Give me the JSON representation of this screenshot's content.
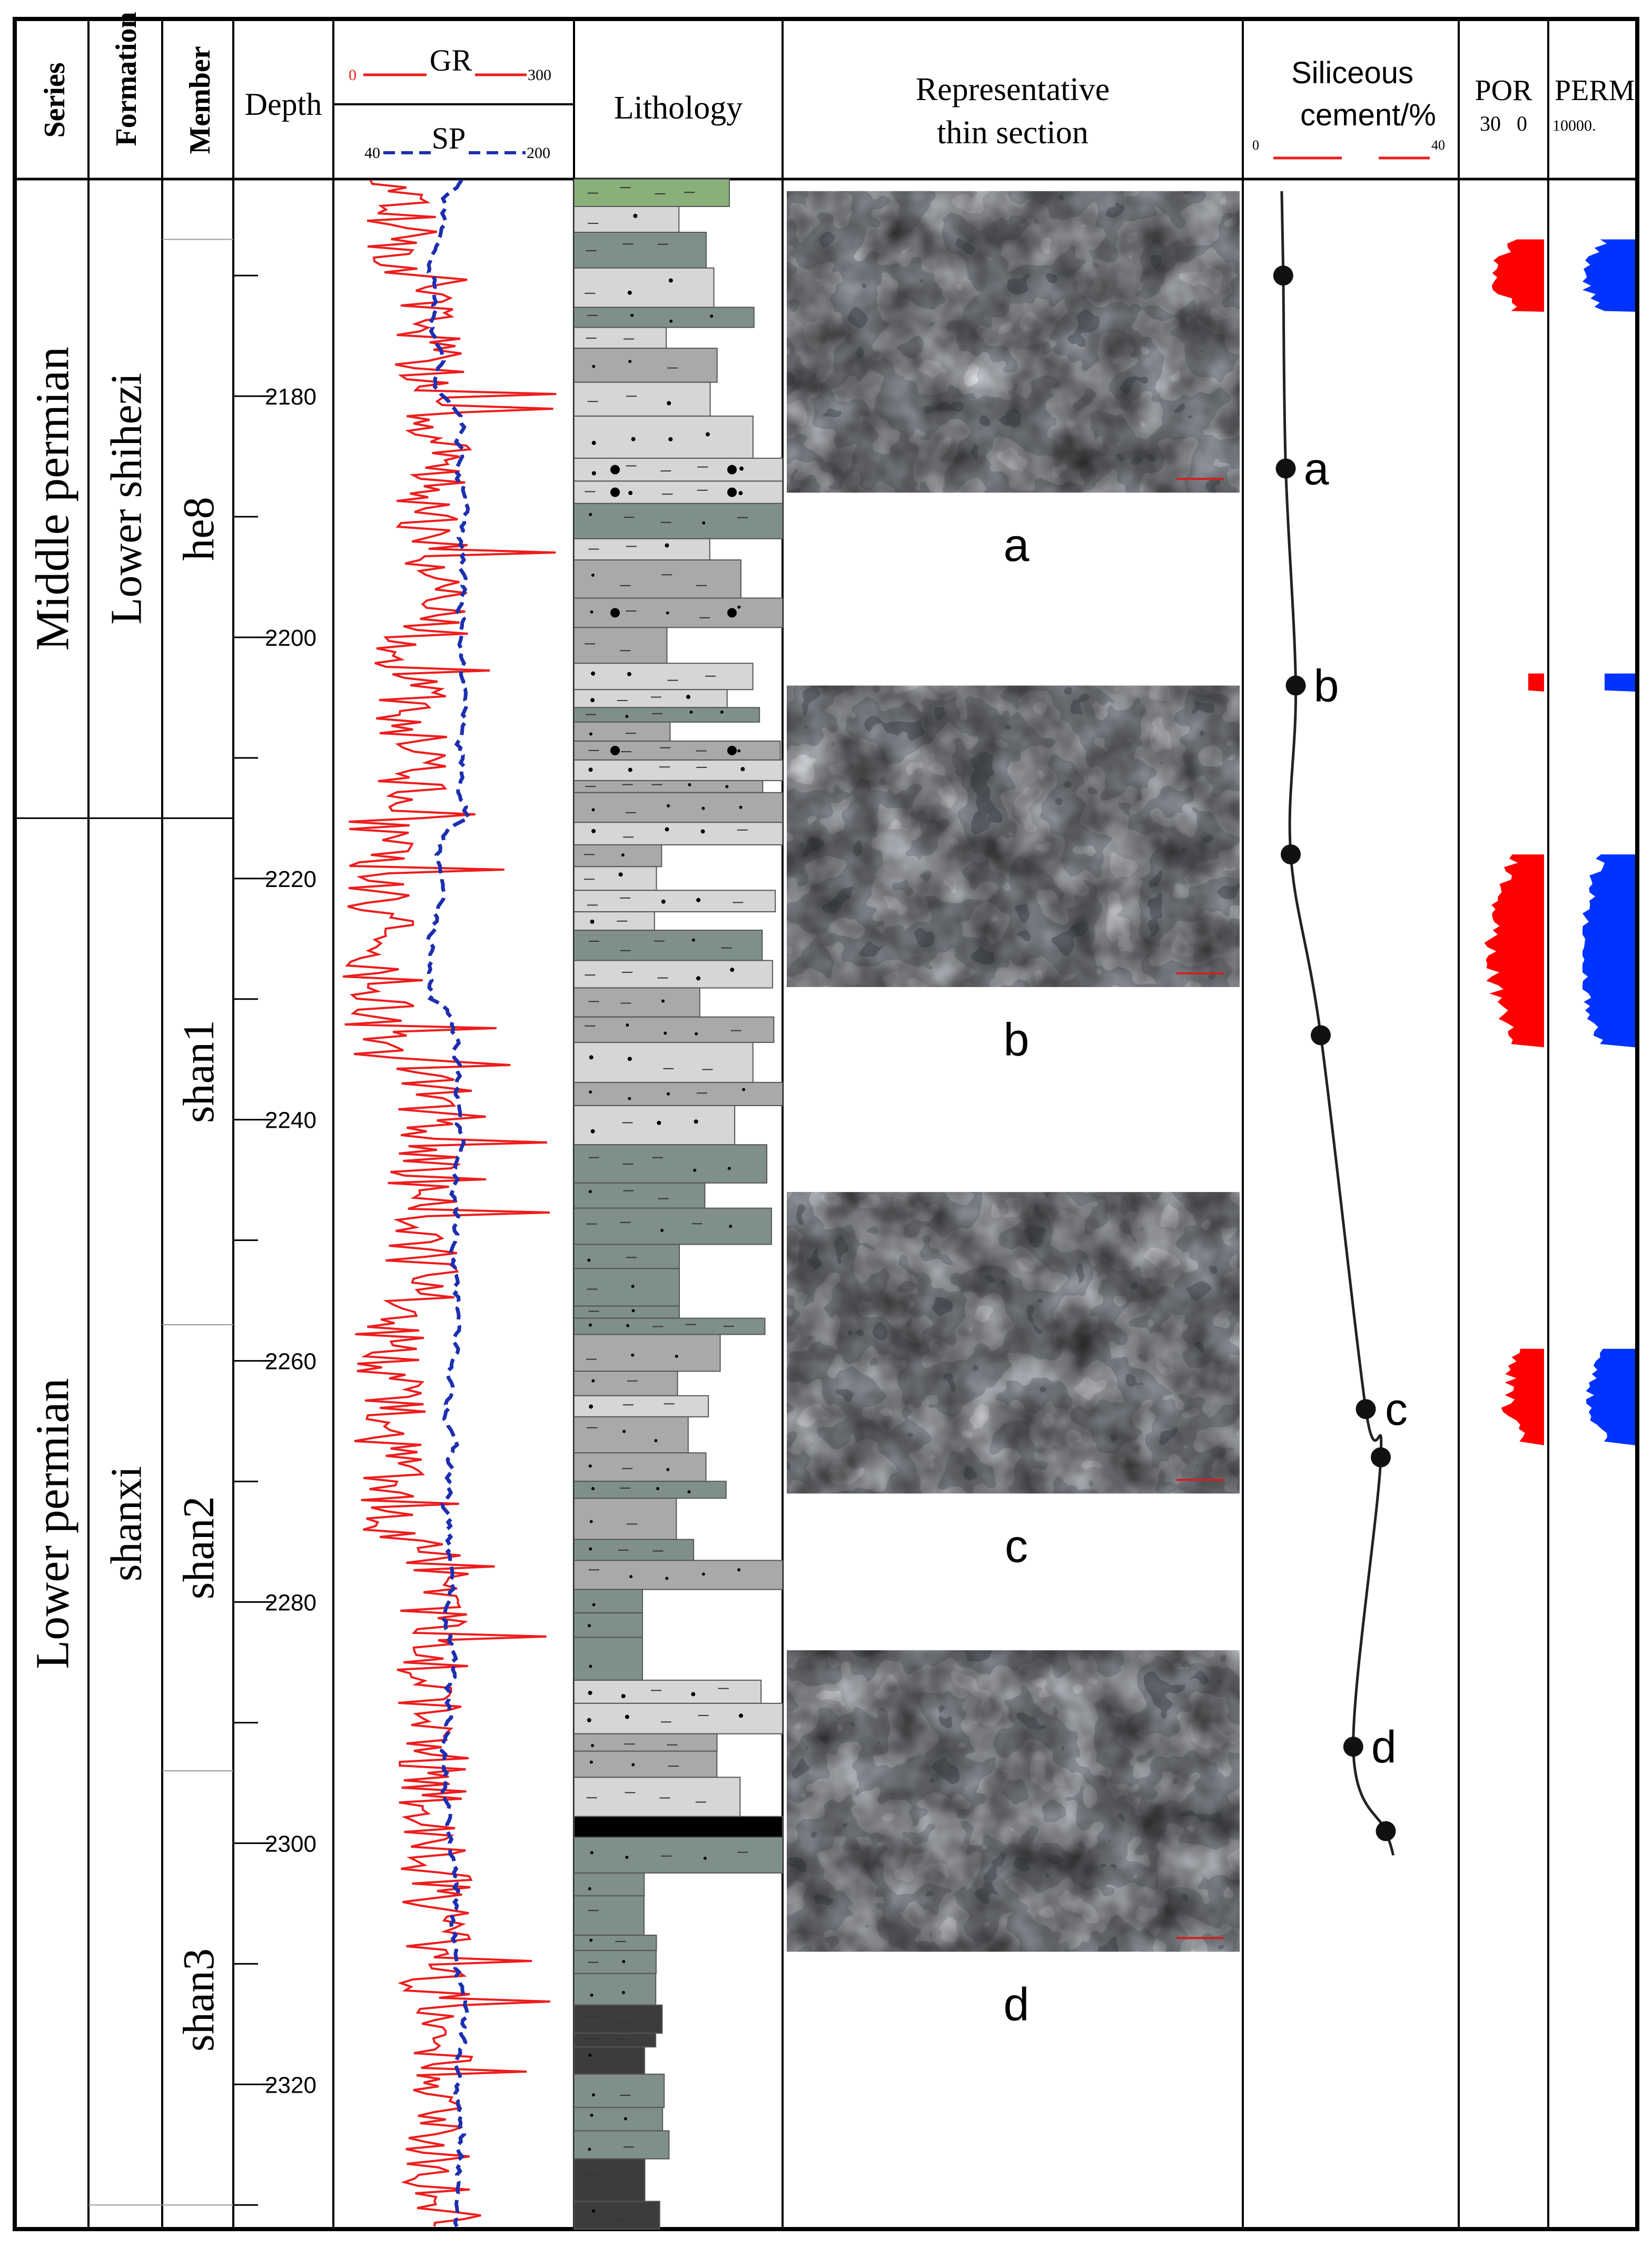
{
  "headers": {
    "series": "Series",
    "formation": "Formation",
    "member": "Member",
    "depth": "Depth",
    "gr": "GR",
    "gr_min": "0",
    "gr_max": "300",
    "sp": "SP",
    "sp_min": "40",
    "sp_max": "200",
    "lithology": "Lithology",
    "thin_section_line1": "Representative",
    "thin_section_line2": "thin section",
    "siliceous_line1": "Siliceous",
    "siliceous_line2": "cement/%",
    "siliceous_min": "0",
    "siliceous_max": "40",
    "por": "POR",
    "por_range": "30   0",
    "perm": "PERM",
    "perm_range": "10000."
  },
  "series_units": [
    {
      "label": "Middle permian",
      "top": 2162,
      "bottom": 2215
    },
    {
      "label": "Lower permian",
      "top": 2215,
      "bottom": 2332
    }
  ],
  "formation_units": [
    {
      "label": "Lower shihezi",
      "top": 2162,
      "bottom": 2215
    },
    {
      "label": "shanxi",
      "top": 2215,
      "bottom": 2332
    }
  ],
  "member_units": [
    {
      "label": "he8",
      "top": 2167,
      "bottom": 2215
    },
    {
      "label": "shan1",
      "top": 2215,
      "bottom": 2257
    },
    {
      "label": "shan2",
      "top": 2257,
      "bottom": 2294
    },
    {
      "label": "shan3",
      "top": 2294,
      "bottom": 2332
    }
  ],
  "depth_axis": {
    "min": 2162,
    "max": 2332,
    "labels": [
      2180,
      2200,
      2220,
      2240,
      2260,
      2280,
      2300,
      2320
    ]
  },
  "thin_sections": [
    {
      "label": "a",
      "top_depth": 2163,
      "bottom_depth": 2188
    },
    {
      "label": "b",
      "top_depth": 2204,
      "bottom_depth": 2229
    },
    {
      "label": "c",
      "top_depth": 2246,
      "bottom_depth": 2271
    },
    {
      "label": "d",
      "top_depth": 2284,
      "bottom_depth": 2309
    }
  ],
  "siliceous_points": [
    {
      "label": "",
      "depth": 2170,
      "value": 6.5
    },
    {
      "label": "a",
      "depth": 2186,
      "value": 7.0
    },
    {
      "label": "b",
      "depth": 2204,
      "value": 9.0
    },
    {
      "label": "",
      "depth": 2218,
      "value": 8.0
    },
    {
      "label": "",
      "depth": 2233,
      "value": 14.0
    },
    {
      "label": "c",
      "depth": 2264,
      "value": 23.0
    },
    {
      "label": "",
      "depth": 2268,
      "value": 26.0
    },
    {
      "label": "d",
      "depth": 2292,
      "value": 20.5
    },
    {
      "label": "",
      "depth": 2299,
      "value": 27.0
    }
  ],
  "colors": {
    "gr": "#ee1c1c",
    "sp": "#1c2fb0",
    "por": "#ff0000",
    "perm": "#0033ff",
    "sandstone_light": "#d6d6d6",
    "sandstone": "#a9a9a9",
    "mudstone": "#7f8f8c",
    "dark": "#3c3c3c",
    "coal": "#000000",
    "green": "#8ab07a"
  }
}
